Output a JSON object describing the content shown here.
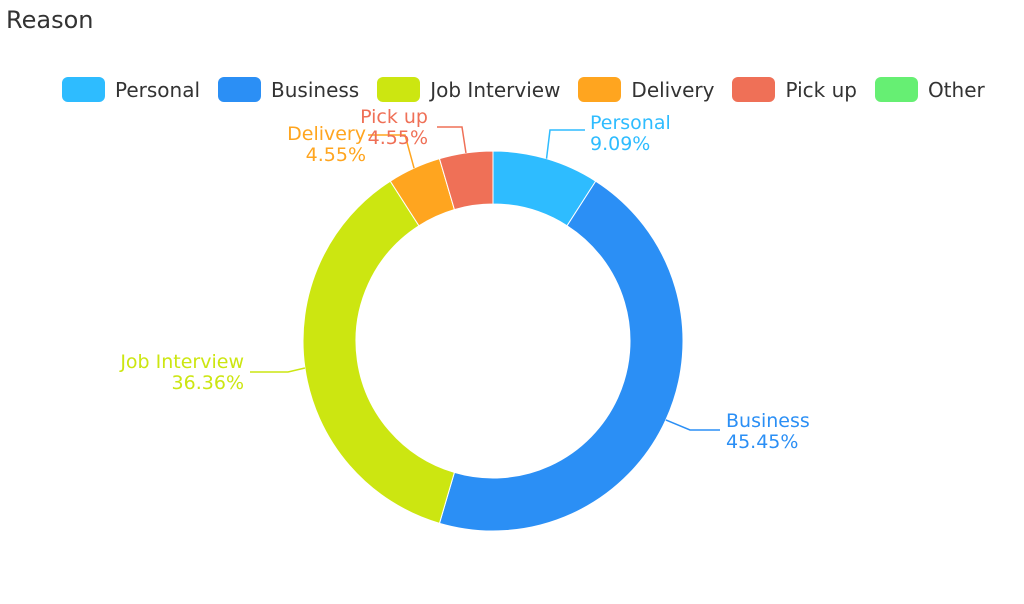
{
  "chart_data": {
    "type": "pie",
    "variant": "donut",
    "title": "Reason",
    "legend_position": "top",
    "slices": [
      {
        "name": "Personal",
        "value": 2,
        "percent_label": "9.09%",
        "color": "#2ebcff"
      },
      {
        "name": "Business",
        "value": 10,
        "percent_label": "45.45%",
        "color": "#2b8ff5"
      },
      {
        "name": "Job Interview",
        "value": 8,
        "percent_label": "36.36%",
        "color": "#cce611"
      },
      {
        "name": "Delivery",
        "value": 1,
        "percent_label": "4.55%",
        "color": "#ffa51f"
      },
      {
        "name": "Pick up",
        "value": 1,
        "percent_label": "4.55%",
        "color": "#ef7057"
      },
      {
        "name": "Other",
        "value": 0,
        "percent_label": "0%",
        "color": "#66ef73"
      }
    ]
  }
}
